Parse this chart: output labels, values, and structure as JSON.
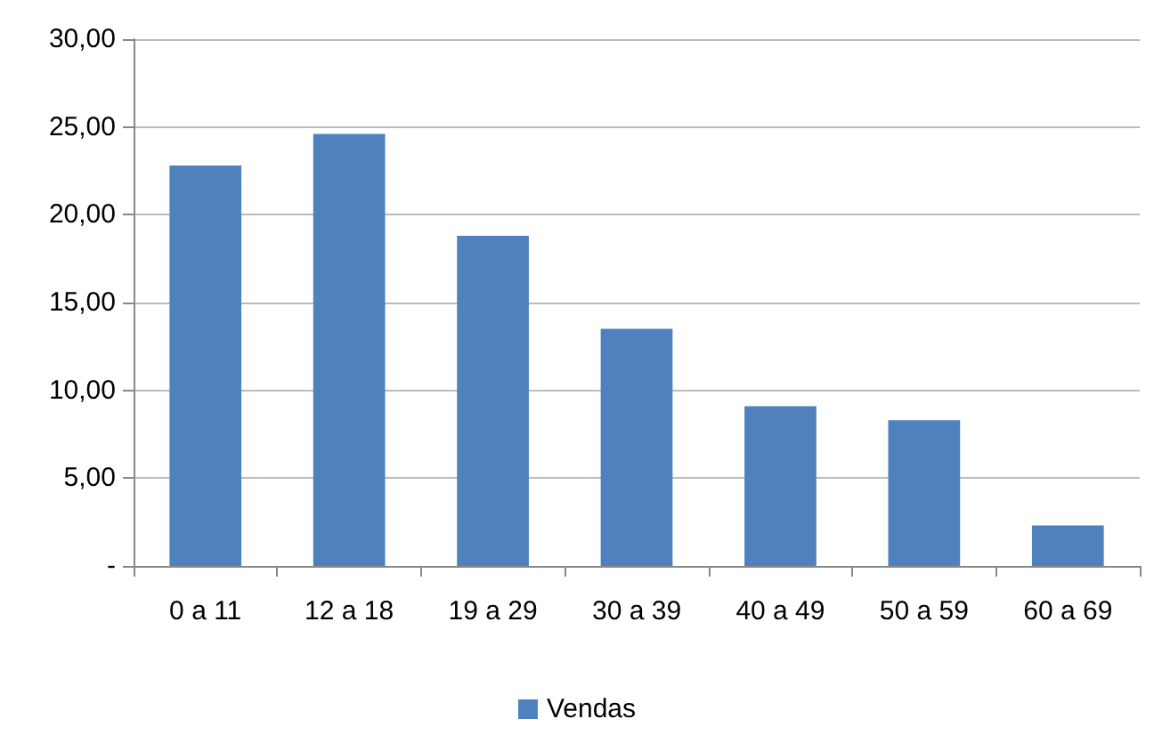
{
  "chart_data": {
    "type": "bar",
    "categories": [
      "0 a 11",
      "12 a 18",
      "19 a 29",
      "30 a 39",
      "40 a 49",
      "50 a 59",
      "60 a 69"
    ],
    "series": [
      {
        "name": "Vendas",
        "color": "#4f81bd",
        "values": [
          22.8,
          24.6,
          18.8,
          13.5,
          9.1,
          8.3,
          2.3
        ]
      }
    ],
    "ylim": [
      0,
      30
    ],
    "yticks": [
      {
        "value": 0,
        "label": "-"
      },
      {
        "value": 5,
        "label": "5,00"
      },
      {
        "value": 10,
        "label": "10,00"
      },
      {
        "value": 15,
        "label": "15,00"
      },
      {
        "value": 20,
        "label": "20,00"
      },
      {
        "value": 25,
        "label": "25,00"
      },
      {
        "value": 30,
        "label": "30,00"
      }
    ],
    "grid": "y",
    "legend": "bottom"
  }
}
